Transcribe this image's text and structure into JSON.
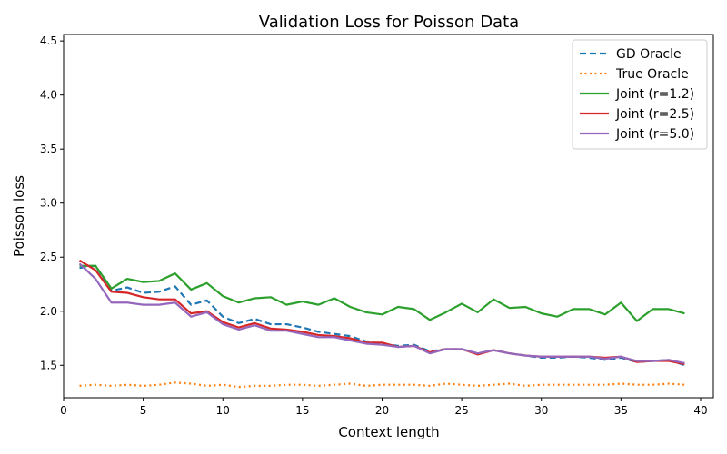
{
  "chart_data": {
    "type": "line",
    "title": "Validation Loss for Poisson Data",
    "xlabel": "Context length",
    "ylabel": "Poisson loss",
    "xlim": [
      0,
      40.8
    ],
    "ylim": [
      1.2,
      4.56
    ],
    "xticks": [
      0,
      5,
      10,
      15,
      20,
      25,
      30,
      35,
      40
    ],
    "yticks": [
      1.5,
      2.0,
      2.5,
      3.0,
      3.5,
      4.0,
      4.5
    ],
    "grid": false,
    "legend": "top-right",
    "x": [
      1,
      2,
      3,
      4,
      5,
      6,
      7,
      8,
      9,
      10,
      11,
      12,
      13,
      14,
      15,
      16,
      17,
      18,
      19,
      20,
      21,
      22,
      23,
      24,
      25,
      26,
      27,
      28,
      29,
      30,
      31,
      32,
      33,
      34,
      35,
      36,
      37,
      38,
      39
    ],
    "series": [
      {
        "name": "GD Oracle",
        "color": "#1f77b4",
        "style": "dashed",
        "values": [
          2.4,
          2.42,
          2.19,
          2.22,
          2.17,
          2.18,
          2.23,
          2.06,
          2.1,
          1.95,
          1.89,
          1.93,
          1.88,
          1.88,
          1.85,
          1.81,
          1.79,
          1.77,
          1.72,
          1.7,
          1.68,
          1.69,
          1.63,
          1.65,
          1.65,
          1.61,
          1.64,
          1.61,
          1.59,
          1.57,
          1.57,
          1.58,
          1.57,
          1.55,
          1.57,
          1.53,
          1.54,
          1.55,
          1.5
        ]
      },
      {
        "name": "True Oracle",
        "color": "#ff7f0e",
        "style": "dotted",
        "values": [
          1.31,
          1.32,
          1.31,
          1.32,
          1.31,
          1.32,
          1.34,
          1.33,
          1.31,
          1.32,
          1.3,
          1.31,
          1.31,
          1.32,
          1.32,
          1.31,
          1.32,
          1.33,
          1.31,
          1.32,
          1.32,
          1.32,
          1.31,
          1.33,
          1.32,
          1.31,
          1.32,
          1.33,
          1.31,
          1.32,
          1.32,
          1.32,
          1.32,
          1.32,
          1.33,
          1.32,
          1.32,
          1.33,
          1.32
        ]
      },
      {
        "name": "Joint (r=1.2)",
        "color": "#2ca02c",
        "style": "solid",
        "values": [
          2.42,
          2.42,
          2.21,
          2.3,
          2.27,
          2.28,
          2.35,
          2.2,
          2.26,
          2.14,
          2.08,
          2.12,
          2.13,
          2.06,
          2.09,
          2.06,
          2.12,
          2.04,
          1.99,
          1.97,
          2.04,
          2.02,
          1.92,
          1.99,
          2.07,
          1.99,
          2.11,
          2.03,
          2.04,
          1.98,
          1.95,
          2.02,
          2.02,
          1.97,
          2.08,
          1.91,
          2.02,
          2.02,
          1.98
        ]
      },
      {
        "name": "Joint (r=2.5)",
        "color": "#d62728",
        "style": "solid",
        "values": [
          2.47,
          2.38,
          2.18,
          2.17,
          2.13,
          2.11,
          2.11,
          1.98,
          2.0,
          1.9,
          1.85,
          1.89,
          1.84,
          1.83,
          1.81,
          1.78,
          1.77,
          1.75,
          1.71,
          1.71,
          1.67,
          1.68,
          1.62,
          1.65,
          1.65,
          1.6,
          1.64,
          1.61,
          1.59,
          1.58,
          1.58,
          1.58,
          1.58,
          1.57,
          1.58,
          1.53,
          1.54,
          1.54,
          1.51
        ]
      },
      {
        "name": "Joint (r=5.0)",
        "color": "#9467bd",
        "style": "solid",
        "values": [
          2.44,
          2.3,
          2.08,
          2.08,
          2.06,
          2.06,
          2.08,
          1.95,
          1.99,
          1.88,
          1.83,
          1.87,
          1.82,
          1.82,
          1.79,
          1.76,
          1.76,
          1.73,
          1.7,
          1.69,
          1.67,
          1.68,
          1.61,
          1.65,
          1.65,
          1.61,
          1.64,
          1.61,
          1.59,
          1.58,
          1.58,
          1.58,
          1.58,
          1.56,
          1.58,
          1.54,
          1.54,
          1.55,
          1.52
        ]
      }
    ]
  }
}
